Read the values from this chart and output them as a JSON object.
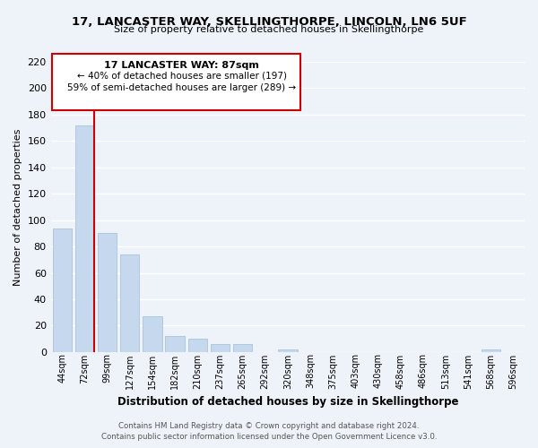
{
  "title": "17, LANCASTER WAY, SKELLINGTHORPE, LINCOLN, LN6 5UF",
  "subtitle": "Size of property relative to detached houses in Skellingthorpe",
  "xlabel": "Distribution of detached houses by size in Skellingthorpe",
  "ylabel": "Number of detached properties",
  "bar_labels": [
    "44sqm",
    "72sqm",
    "99sqm",
    "127sqm",
    "154sqm",
    "182sqm",
    "210sqm",
    "237sqm",
    "265sqm",
    "292sqm",
    "320sqm",
    "348sqm",
    "375sqm",
    "403sqm",
    "430sqm",
    "458sqm",
    "486sqm",
    "513sqm",
    "541sqm",
    "568sqm",
    "596sqm"
  ],
  "bar_values": [
    94,
    172,
    90,
    74,
    27,
    12,
    10,
    6,
    6,
    0,
    2,
    0,
    0,
    0,
    0,
    0,
    0,
    0,
    0,
    2,
    0
  ],
  "bar_color": "#c5d8ed",
  "bar_edge_color": "#a8c4dc",
  "ylim": [
    0,
    220
  ],
  "yticks": [
    0,
    20,
    40,
    60,
    80,
    100,
    120,
    140,
    160,
    180,
    200,
    220
  ],
  "vline_color": "#cc0000",
  "annotation_title": "17 LANCASTER WAY: 87sqm",
  "annotation_line1": "← 40% of detached houses are smaller (197)",
  "annotation_line2": "59% of semi-detached houses are larger (289) →",
  "annotation_box_color": "#ffffff",
  "annotation_box_edge": "#cc0000",
  "footer_line1": "Contains HM Land Registry data © Crown copyright and database right 2024.",
  "footer_line2": "Contains public sector information licensed under the Open Government Licence v3.0.",
  "bg_color": "#eef2f9",
  "grid_color": "#ffffff"
}
